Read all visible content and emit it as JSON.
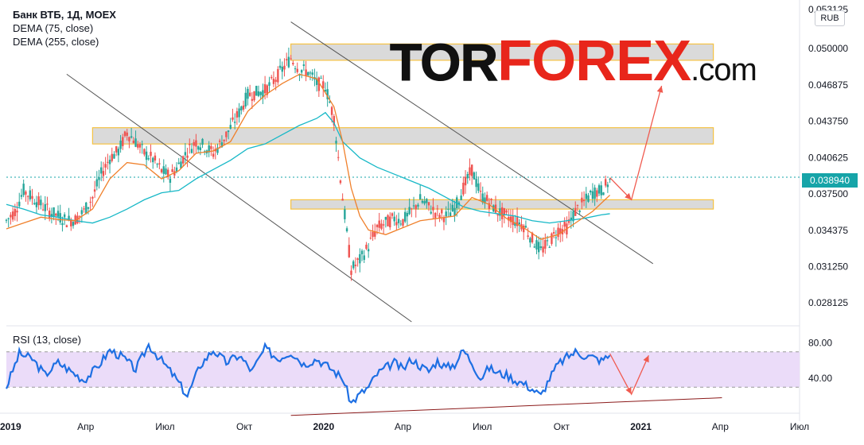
{
  "header": {
    "symbol_line": "Банк ВТБ, 1Д, MOEX",
    "dema1": "DEMA (75, close)",
    "dema2": "DEMA (255, close)",
    "currency": "RUB"
  },
  "logo": {
    "part1": "TOR",
    "part2": "FOREX",
    "part3": ".com"
  },
  "rsi": {
    "title": "RSI (13, close)"
  },
  "colors": {
    "up": "#26a69a",
    "down": "#ef5350",
    "dema75": "#f0802b",
    "dema255": "#17b8c7",
    "rsi": "#1e6fe3",
    "rsi_band": "#ebdcf9",
    "zone_border": "#f5c242",
    "zone_fill": "#d6d6d6",
    "trendline": "#555555",
    "arrow": "#f05a4f",
    "support_line": "#8b1a1a",
    "price_tag": "#16a4a8"
  },
  "chart_data": [
    {
      "type": "candlestick",
      "title": "Банк ВТБ, 1Д, MOEX",
      "y_ticks": [
        "0.050000",
        "0.046875",
        "0.043750",
        "0.040625",
        "0.037500",
        "0.034375",
        "0.031250",
        "0.028125"
      ],
      "y_top_partial": "0.053125",
      "x_ticks": [
        "2019",
        "Апр",
        "Июл",
        "Окт",
        "2020",
        "Апр",
        "Июл",
        "Окт",
        "2021",
        "Апр",
        "Июл"
      ],
      "last_price": "0.038940",
      "ylim": [
        0.0265,
        0.0535
      ],
      "series": [
        {
          "name": "DEMA (75, close)"
        },
        {
          "name": "DEMA (255, close)"
        }
      ],
      "price_path": [
        [
          0,
          0.0352
        ],
        [
          2,
          0.036
        ],
        [
          4,
          0.0378
        ],
        [
          6,
          0.0372
        ],
        [
          8,
          0.0366
        ],
        [
          10,
          0.036
        ],
        [
          12,
          0.0356
        ],
        [
          14,
          0.0352
        ],
        [
          16,
          0.0353
        ],
        [
          18,
          0.036
        ],
        [
          20,
          0.0372
        ],
        [
          22,
          0.0392
        ],
        [
          24,
          0.0406
        ],
        [
          26,
          0.0412
        ],
        [
          28,
          0.0428
        ],
        [
          30,
          0.042
        ],
        [
          32,
          0.041
        ],
        [
          34,
          0.0405
        ],
        [
          36,
          0.0395
        ],
        [
          38,
          0.039
        ],
        [
          40,
          0.04
        ],
        [
          42,
          0.0412
        ],
        [
          44,
          0.042
        ],
        [
          46,
          0.0416
        ],
        [
          48,
          0.041
        ],
        [
          50,
          0.042
        ],
        [
          52,
          0.0432
        ],
        [
          54,
          0.0445
        ],
        [
          56,
          0.046
        ],
        [
          58,
          0.0462
        ],
        [
          60,
          0.0464
        ],
        [
          62,
          0.0472
        ],
        [
          64,
          0.0482
        ],
        [
          66,
          0.0492
        ],
        [
          68,
          0.0482
        ],
        [
          70,
          0.048
        ],
        [
          72,
          0.047
        ],
        [
          74,
          0.0468
        ],
        [
          76,
          0.044
        ],
        [
          78,
          0.0372
        ],
        [
          80,
          0.031
        ],
        [
          82,
          0.0318
        ],
        [
          84,
          0.033
        ],
        [
          86,
          0.0346
        ],
        [
          88,
          0.035
        ],
        [
          90,
          0.0354
        ],
        [
          92,
          0.0352
        ],
        [
          94,
          0.036
        ],
        [
          96,
          0.037
        ],
        [
          98,
          0.0364
        ],
        [
          100,
          0.0358
        ],
        [
          102,
          0.0356
        ],
        [
          104,
          0.0362
        ],
        [
          106,
          0.038
        ],
        [
          108,
          0.0396
        ],
        [
          110,
          0.0374
        ],
        [
          112,
          0.0368
        ],
        [
          114,
          0.036
        ],
        [
          116,
          0.0356
        ],
        [
          118,
          0.0352
        ],
        [
          120,
          0.0348
        ],
        [
          122,
          0.0336
        ],
        [
          124,
          0.0326
        ],
        [
          126,
          0.0334
        ],
        [
          128,
          0.0344
        ],
        [
          130,
          0.0346
        ],
        [
          132,
          0.036
        ],
        [
          134,
          0.0368
        ],
        [
          136,
          0.0376
        ],
        [
          138,
          0.0378
        ],
        [
          140,
          0.0386
        ]
      ],
      "dema75": [
        [
          0,
          0.0345
        ],
        [
          4,
          0.035
        ],
        [
          8,
          0.0355
        ],
        [
          12,
          0.0353
        ],
        [
          16,
          0.0352
        ],
        [
          20,
          0.0362
        ],
        [
          24,
          0.0388
        ],
        [
          28,
          0.0402
        ],
        [
          32,
          0.04
        ],
        [
          36,
          0.0388
        ],
        [
          40,
          0.0395
        ],
        [
          44,
          0.041
        ],
        [
          48,
          0.0412
        ],
        [
          52,
          0.042
        ],
        [
          56,
          0.0446
        ],
        [
          60,
          0.046
        ],
        [
          64,
          0.047
        ],
        [
          68,
          0.0478
        ],
        [
          72,
          0.0474
        ],
        [
          76,
          0.045
        ],
        [
          78,
          0.042
        ],
        [
          80,
          0.038
        ],
        [
          82,
          0.0356
        ],
        [
          84,
          0.0344
        ],
        [
          88,
          0.034
        ],
        [
          92,
          0.0346
        ],
        [
          96,
          0.0352
        ],
        [
          100,
          0.0354
        ],
        [
          104,
          0.0356
        ],
        [
          108,
          0.0372
        ],
        [
          112,
          0.0366
        ],
        [
          116,
          0.0354
        ],
        [
          120,
          0.0346
        ],
        [
          124,
          0.0336
        ],
        [
          128,
          0.034
        ],
        [
          132,
          0.035
        ],
        [
          136,
          0.036
        ],
        [
          140,
          0.0374
        ]
      ],
      "dema255": [
        [
          0,
          0.0366
        ],
        [
          4,
          0.0362
        ],
        [
          8,
          0.0357
        ],
        [
          12,
          0.0355
        ],
        [
          16,
          0.0352
        ],
        [
          20,
          0.035
        ],
        [
          24,
          0.0355
        ],
        [
          28,
          0.0362
        ],
        [
          32,
          0.037
        ],
        [
          36,
          0.0376
        ],
        [
          40,
          0.0378
        ],
        [
          44,
          0.0388
        ],
        [
          48,
          0.0396
        ],
        [
          52,
          0.0404
        ],
        [
          56,
          0.0414
        ],
        [
          60,
          0.0418
        ],
        [
          64,
          0.0426
        ],
        [
          68,
          0.0434
        ],
        [
          72,
          0.044
        ],
        [
          74,
          0.0445
        ],
        [
          76,
          0.0436
        ],
        [
          78,
          0.042
        ],
        [
          82,
          0.0406
        ],
        [
          86,
          0.0398
        ],
        [
          90,
          0.0392
        ],
        [
          94,
          0.0386
        ],
        [
          98,
          0.038
        ],
        [
          102,
          0.0372
        ],
        [
          106,
          0.0364
        ],
        [
          110,
          0.036
        ],
        [
          114,
          0.0358
        ],
        [
          118,
          0.0356
        ],
        [
          122,
          0.0352
        ],
        [
          126,
          0.035
        ],
        [
          130,
          0.0352
        ],
        [
          134,
          0.0354
        ],
        [
          138,
          0.0357
        ],
        [
          140,
          0.0358
        ]
      ],
      "zones": [
        {
          "x0": 66,
          "x1": 164,
          "y0": 0.049,
          "y1": 0.0504
        },
        {
          "x0": 20,
          "x1": 164,
          "y0": 0.0418,
          "y1": 0.0432
        },
        {
          "x0": 66,
          "x1": 164,
          "y0": 0.0362,
          "y1": 0.037
        }
      ],
      "trendlines": [
        {
          "x0": 14,
          "y0": 0.0478,
          "x1": 94,
          "y1": 0.0265
        },
        {
          "x0": 66,
          "y0": 0.0523,
          "x1": 150,
          "y1": 0.0315
        }
      ],
      "forecast": [
        [
          140,
          0.0389
        ],
        [
          145,
          0.037
        ],
        [
          152,
          0.0468
        ]
      ]
    },
    {
      "type": "line",
      "title": "RSI (13, close)",
      "y_ticks": [
        "80.00",
        "40.00"
      ],
      "band": [
        30,
        70
      ],
      "ylim": [
        5,
        95
      ],
      "values": [
        [
          0,
          30
        ],
        [
          3,
          68
        ],
        [
          6,
          62
        ],
        [
          9,
          44
        ],
        [
          12,
          58
        ],
        [
          15,
          48
        ],
        [
          18,
          38
        ],
        [
          21,
          52
        ],
        [
          24,
          72
        ],
        [
          27,
          64
        ],
        [
          30,
          50
        ],
        [
          33,
          78
        ],
        [
          36,
          60
        ],
        [
          39,
          42
        ],
        [
          42,
          20
        ],
        [
          45,
          55
        ],
        [
          48,
          72
        ],
        [
          51,
          58
        ],
        [
          54,
          66
        ],
        [
          57,
          48
        ],
        [
          60,
          74
        ],
        [
          63,
          62
        ],
        [
          66,
          70
        ],
        [
          69,
          56
        ],
        [
          72,
          62
        ],
        [
          75,
          52
        ],
        [
          78,
          40
        ],
        [
          80,
          12
        ],
        [
          82,
          22
        ],
        [
          84,
          30
        ],
        [
          86,
          45
        ],
        [
          88,
          52
        ],
        [
          90,
          58
        ],
        [
          92,
          50
        ],
        [
          94,
          62
        ],
        [
          96,
          54
        ],
        [
          98,
          48
        ],
        [
          100,
          60
        ],
        [
          102,
          52
        ],
        [
          104,
          56
        ],
        [
          106,
          72
        ],
        [
          108,
          58
        ],
        [
          110,
          40
        ],
        [
          112,
          52
        ],
        [
          114,
          46
        ],
        [
          116,
          44
        ],
        [
          118,
          38
        ],
        [
          120,
          34
        ],
        [
          122,
          28
        ],
        [
          124,
          20
        ],
        [
          126,
          40
        ],
        [
          128,
          56
        ],
        [
          130,
          64
        ],
        [
          132,
          70
        ],
        [
          134,
          66
        ],
        [
          136,
          64
        ],
        [
          138,
          60
        ],
        [
          140,
          66
        ]
      ],
      "support": {
        "x0": 66,
        "y0": -2,
        "x1": 166,
        "y1": 18
      },
      "forecast": [
        [
          140,
          68
        ],
        [
          145,
          22
        ],
        [
          149,
          66
        ]
      ]
    }
  ]
}
